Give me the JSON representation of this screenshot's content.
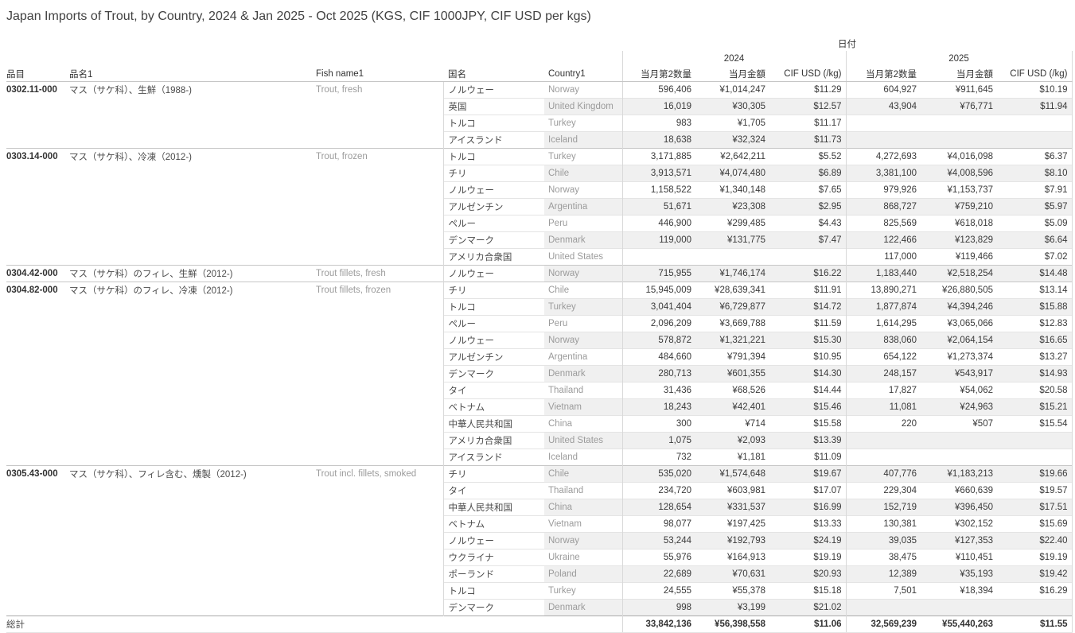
{
  "title": "Japan Imports of Trout, by Country, 2024 & Jan 2025 - Oct 2025 (KGS, CIF 1000JPY, CIF USD per kgs)",
  "colors": {
    "row_banding": "#f0f0f0",
    "grid_line": "#d9d9d9",
    "section_line": "#c6c6c6",
    "text_primary": "#333333",
    "text_secondary": "#9b9b9b"
  },
  "chart_data": {
    "type": "table",
    "title": "Japan Imports of Trout, by Country, 2024 & Jan 2025 - Oct 2025 (KGS, CIF 1000JPY, CIF USD per kgs)",
    "header": {
      "date_label": "日付",
      "years": [
        "2024",
        "2025"
      ],
      "measures": [
        "当月第2数量",
        "当月金額",
        "CIF USD (/kg)"
      ],
      "row_fields": [
        "品目",
        "品名1",
        "Fish name1",
        "国名",
        "Country1"
      ]
    },
    "sections": [
      {
        "code": "0302.11-000",
        "name_jp": "マス（サケ科）、生鮮（1988-)",
        "fish_name": "Trout, fresh",
        "rows": [
          {
            "country_jp": "ノルウェー",
            "country_en": "Norway",
            "values": [
              "596,406",
              "¥1,014,247",
              "$11.29",
              "604,927",
              "¥911,645",
              "$10.19"
            ]
          },
          {
            "country_jp": "英国",
            "country_en": "United Kingdom",
            "values": [
              "16,019",
              "¥30,305",
              "$12.57",
              "43,904",
              "¥76,771",
              "$11.94"
            ]
          },
          {
            "country_jp": "トルコ",
            "country_en": "Turkey",
            "values": [
              "983",
              "¥1,705",
              "$11.17",
              "",
              "",
              ""
            ]
          },
          {
            "country_jp": "アイスランド",
            "country_en": "Iceland",
            "values": [
              "18,638",
              "¥32,324",
              "$11.73",
              "",
              "",
              ""
            ]
          }
        ]
      },
      {
        "code": "0303.14-000",
        "name_jp": "マス（サケ科）、冷凍（2012-)",
        "fish_name": "Trout, frozen",
        "rows": [
          {
            "country_jp": "トルコ",
            "country_en": "Turkey",
            "values": [
              "3,171,885",
              "¥2,642,211",
              "$5.52",
              "4,272,693",
              "¥4,016,098",
              "$6.37"
            ]
          },
          {
            "country_jp": "チリ",
            "country_en": "Chile",
            "values": [
              "3,913,571",
              "¥4,074,480",
              "$6.89",
              "3,381,100",
              "¥4,008,596",
              "$8.10"
            ]
          },
          {
            "country_jp": "ノルウェー",
            "country_en": "Norway",
            "values": [
              "1,158,522",
              "¥1,340,148",
              "$7.65",
              "979,926",
              "¥1,153,737",
              "$7.91"
            ]
          },
          {
            "country_jp": "アルゼンチン",
            "country_en": "Argentina",
            "values": [
              "51,671",
              "¥23,308",
              "$2.95",
              "868,727",
              "¥759,210",
              "$5.97"
            ]
          },
          {
            "country_jp": "ペルー",
            "country_en": "Peru",
            "values": [
              "446,900",
              "¥299,485",
              "$4.43",
              "825,569",
              "¥618,018",
              "$5.09"
            ]
          },
          {
            "country_jp": "デンマーク",
            "country_en": "Denmark",
            "values": [
              "119,000",
              "¥131,775",
              "$7.47",
              "122,466",
              "¥123,829",
              "$6.64"
            ]
          },
          {
            "country_jp": "アメリカ合衆国",
            "country_en": "United States",
            "values": [
              "",
              "",
              "",
              "117,000",
              "¥119,466",
              "$7.02"
            ]
          }
        ]
      },
      {
        "code": "0304.42-000",
        "name_jp": "マス（サケ科）のフィレ、生鮮（2012-)",
        "fish_name": "Trout fillets, fresh",
        "rows": [
          {
            "country_jp": "ノルウェー",
            "country_en": "Norway",
            "values": [
              "715,955",
              "¥1,746,174",
              "$16.22",
              "1,183,440",
              "¥2,518,254",
              "$14.48"
            ]
          }
        ]
      },
      {
        "code": "0304.82-000",
        "name_jp": "マス（サケ科）のフィレ、冷凍（2012-)",
        "fish_name": "Trout fillets, frozen",
        "rows": [
          {
            "country_jp": "チリ",
            "country_en": "Chile",
            "values": [
              "15,945,009",
              "¥28,639,341",
              "$11.91",
              "13,890,271",
              "¥26,880,505",
              "$13.14"
            ]
          },
          {
            "country_jp": "トルコ",
            "country_en": "Turkey",
            "values": [
              "3,041,404",
              "¥6,729,877",
              "$14.72",
              "1,877,874",
              "¥4,394,246",
              "$15.88"
            ]
          },
          {
            "country_jp": "ペルー",
            "country_en": "Peru",
            "values": [
              "2,096,209",
              "¥3,669,788",
              "$11.59",
              "1,614,295",
              "¥3,065,066",
              "$12.83"
            ]
          },
          {
            "country_jp": "ノルウェー",
            "country_en": "Norway",
            "values": [
              "578,872",
              "¥1,321,221",
              "$15.30",
              "838,060",
              "¥2,064,154",
              "$16.65"
            ]
          },
          {
            "country_jp": "アルゼンチン",
            "country_en": "Argentina",
            "values": [
              "484,660",
              "¥791,394",
              "$10.95",
              "654,122",
              "¥1,273,374",
              "$13.27"
            ]
          },
          {
            "country_jp": "デンマーク",
            "country_en": "Denmark",
            "values": [
              "280,713",
              "¥601,355",
              "$14.30",
              "248,157",
              "¥543,917",
              "$14.93"
            ]
          },
          {
            "country_jp": "タイ",
            "country_en": "Thailand",
            "values": [
              "31,436",
              "¥68,526",
              "$14.44",
              "17,827",
              "¥54,062",
              "$20.58"
            ]
          },
          {
            "country_jp": "ベトナム",
            "country_en": "Vietnam",
            "values": [
              "18,243",
              "¥42,401",
              "$15.46",
              "11,081",
              "¥24,963",
              "$15.21"
            ]
          },
          {
            "country_jp": "中華人民共和国",
            "country_en": "China",
            "values": [
              "300",
              "¥714",
              "$15.58",
              "220",
              "¥507",
              "$15.54"
            ]
          },
          {
            "country_jp": "アメリカ合衆国",
            "country_en": "United States",
            "values": [
              "1,075",
              "¥2,093",
              "$13.39",
              "",
              "",
              ""
            ]
          },
          {
            "country_jp": "アイスランド",
            "country_en": "Iceland",
            "values": [
              "732",
              "¥1,181",
              "$11.09",
              "",
              "",
              ""
            ]
          }
        ]
      },
      {
        "code": "0305.43-000",
        "name_jp": "マス（サケ科）、フィレ含む、燻製（2012-)",
        "fish_name": "Trout incl. fillets, smoked",
        "rows": [
          {
            "country_jp": "チリ",
            "country_en": "Chile",
            "values": [
              "535,020",
              "¥1,574,648",
              "$19.67",
              "407,776",
              "¥1,183,213",
              "$19.66"
            ]
          },
          {
            "country_jp": "タイ",
            "country_en": "Thailand",
            "values": [
              "234,720",
              "¥603,981",
              "$17.07",
              "229,304",
              "¥660,639",
              "$19.57"
            ]
          },
          {
            "country_jp": "中華人民共和国",
            "country_en": "China",
            "values": [
              "128,654",
              "¥331,537",
              "$16.99",
              "152,719",
              "¥396,450",
              "$17.51"
            ]
          },
          {
            "country_jp": "ベトナム",
            "country_en": "Vietnam",
            "values": [
              "98,077",
              "¥197,425",
              "$13.33",
              "130,381",
              "¥302,152",
              "$15.69"
            ]
          },
          {
            "country_jp": "ノルウェー",
            "country_en": "Norway",
            "values": [
              "53,244",
              "¥192,793",
              "$24.19",
              "39,035",
              "¥127,353",
              "$22.40"
            ]
          },
          {
            "country_jp": "ウクライナ",
            "country_en": "Ukraine",
            "values": [
              "55,976",
              "¥164,913",
              "$19.19",
              "38,475",
              "¥110,451",
              "$19.19"
            ]
          },
          {
            "country_jp": "ポーランド",
            "country_en": "Poland",
            "values": [
              "22,689",
              "¥70,631",
              "$20.93",
              "12,389",
              "¥35,193",
              "$19.42"
            ]
          },
          {
            "country_jp": "トルコ",
            "country_en": "Turkey",
            "values": [
              "24,555",
              "¥55,378",
              "$15.18",
              "7,501",
              "¥18,394",
              "$16.29"
            ]
          },
          {
            "country_jp": "デンマーク",
            "country_en": "Denmark",
            "values": [
              "998",
              "¥3,199",
              "$21.02",
              "",
              "",
              ""
            ]
          }
        ]
      }
    ],
    "grand_total": {
      "label": "総計",
      "values": [
        "33,842,136",
        "¥56,398,558",
        "$11.06",
        "32,569,239",
        "¥55,440,263",
        "$11.55"
      ]
    }
  }
}
